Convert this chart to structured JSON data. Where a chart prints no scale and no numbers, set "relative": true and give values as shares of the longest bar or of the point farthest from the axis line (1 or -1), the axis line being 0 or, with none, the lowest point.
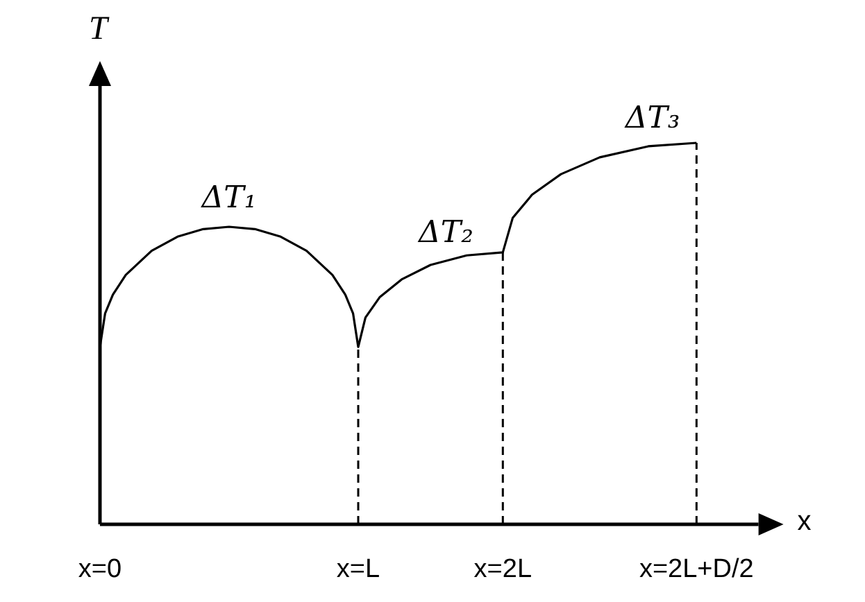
{
  "chart_data": {
    "type": "line",
    "relative": true,
    "xlabel": "x",
    "ylabel": "T",
    "xlim": [
      0,
      2.55
    ],
    "xticks": [
      {
        "value": 0,
        "label": "x=0"
      },
      {
        "value": 1,
        "label": "x=L"
      },
      {
        "value": 1.56,
        "label": "x=2L"
      },
      {
        "value": 2.31,
        "label": "x=2L+D/2"
      }
    ],
    "series": [
      {
        "color": "#000000",
        "x": [
          0,
          0.02,
          0.05,
          0.1,
          0.2,
          0.3,
          0.4,
          0.5,
          0.6,
          0.7,
          0.8,
          0.9,
          0.95,
          0.98,
          1,
          1.028,
          1.084,
          1.168,
          1.28,
          1.42,
          1.56,
          1.598,
          1.673,
          1.785,
          1.935,
          2.123,
          2.31
        ],
        "values": [
          0.465,
          0.553,
          0.602,
          0.654,
          0.717,
          0.754,
          0.774,
          0.78,
          0.774,
          0.754,
          0.717,
          0.654,
          0.602,
          0.553,
          0.465,
          0.542,
          0.596,
          0.642,
          0.68,
          0.705,
          0.713,
          0.803,
          0.864,
          0.918,
          0.962,
          0.991,
          1.0
        ]
      }
    ],
    "ref_lines": [
      {
        "axis": "x",
        "value": 1,
        "line_style": "dashed"
      },
      {
        "axis": "x",
        "value": 1.56,
        "line_style": "dashed"
      },
      {
        "axis": "x",
        "value": 2.31,
        "line_style": "dashed"
      }
    ],
    "annotations": [
      {
        "text": "ΔT₁",
        "x": 0.5,
        "y": 0.78
      },
      {
        "text": "ΔT₂",
        "x": 1.34,
        "y": 0.69
      },
      {
        "text": "ΔT₃",
        "x": 2.14,
        "y": 0.99
      }
    ],
    "marker": "none",
    "line_style": "solid"
  }
}
